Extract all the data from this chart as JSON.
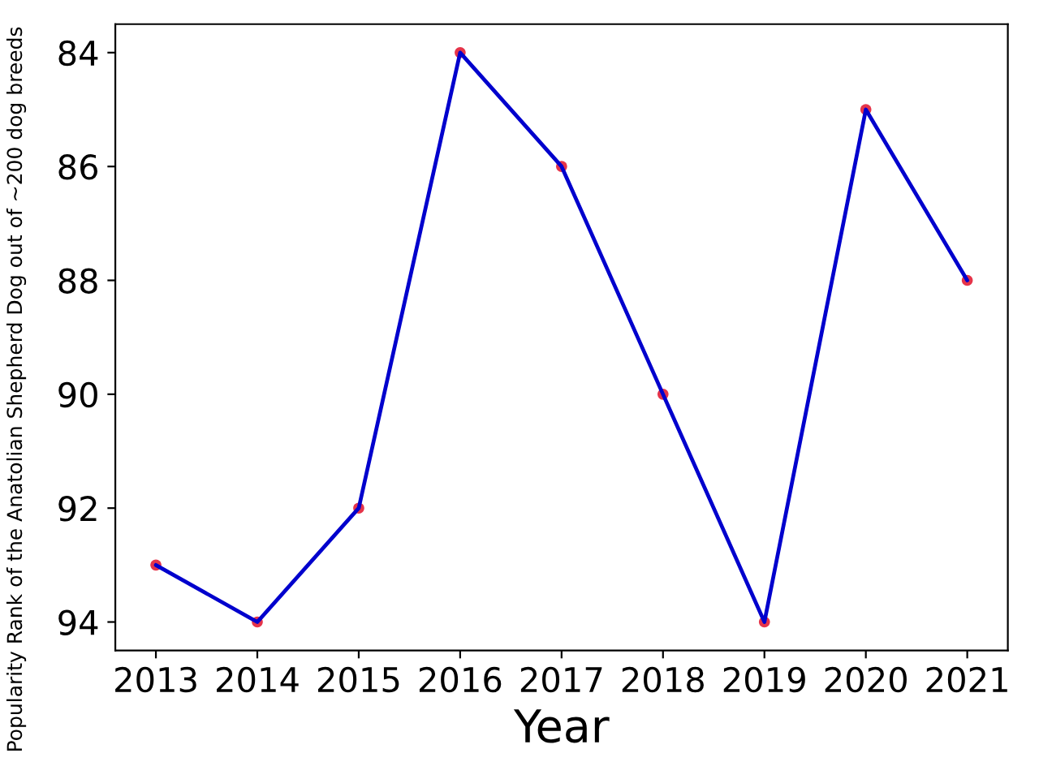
{
  "chart_data": {
    "type": "line",
    "xlabel": "Year",
    "ylabel": "Popularity Rank of the Anatolian Shepherd Dog out of ~200 dog breeds",
    "x": [
      2013,
      2014,
      2015,
      2016,
      2017,
      2018,
      2019,
      2020,
      2021
    ],
    "series": [
      {
        "type": "scatter",
        "color": "#e0102a",
        "marker": "circle",
        "values": [
          93,
          94,
          92,
          84,
          86,
          90,
          94,
          85,
          88
        ]
      },
      {
        "color": "#0000cd",
        "marker": "none",
        "line_style": "solid",
        "values": [
          93,
          94,
          92,
          84,
          86,
          90,
          94,
          85,
          88
        ]
      }
    ],
    "xlim": [
      2012.6,
      2021.4
    ],
    "xticks": [
      2013,
      2014,
      2015,
      2016,
      2017,
      2018,
      2019,
      2020,
      2021
    ],
    "ylim": [
      94.5,
      83.5
    ],
    "yticks": [
      84,
      86,
      88,
      90,
      92,
      94
    ],
    "grid": false
  }
}
